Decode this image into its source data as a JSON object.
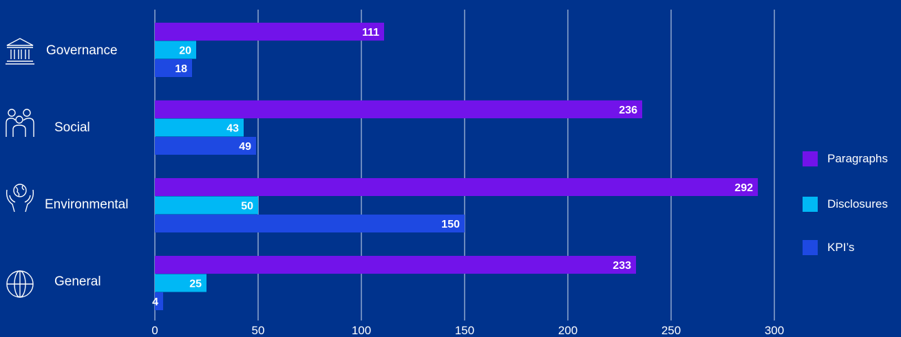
{
  "chart_data": {
    "type": "bar",
    "orientation": "horizontal",
    "categories": [
      "Governance",
      "Social",
      "Environmental",
      "General"
    ],
    "series": [
      {
        "name": "Paragraphs",
        "color": "#7213EA",
        "values": [
          111,
          236,
          292,
          233
        ]
      },
      {
        "name": "Disclosures",
        "color": "#00B8F5",
        "values": [
          20,
          43,
          50,
          25
        ]
      },
      {
        "name": "KPI’s",
        "color": "#1E49E2",
        "values": [
          18,
          49,
          150,
          4
        ]
      }
    ],
    "xlim": [
      0,
      300
    ],
    "xticks": [
      "0",
      "50",
      "100",
      "150",
      "200",
      "250",
      "300"
    ],
    "grid": true,
    "legend_position": "right",
    "category_icons": [
      "bank-icon",
      "people-icon",
      "globe-in-hands-icon",
      "globe-icon"
    ],
    "background_color": "#00338D"
  }
}
